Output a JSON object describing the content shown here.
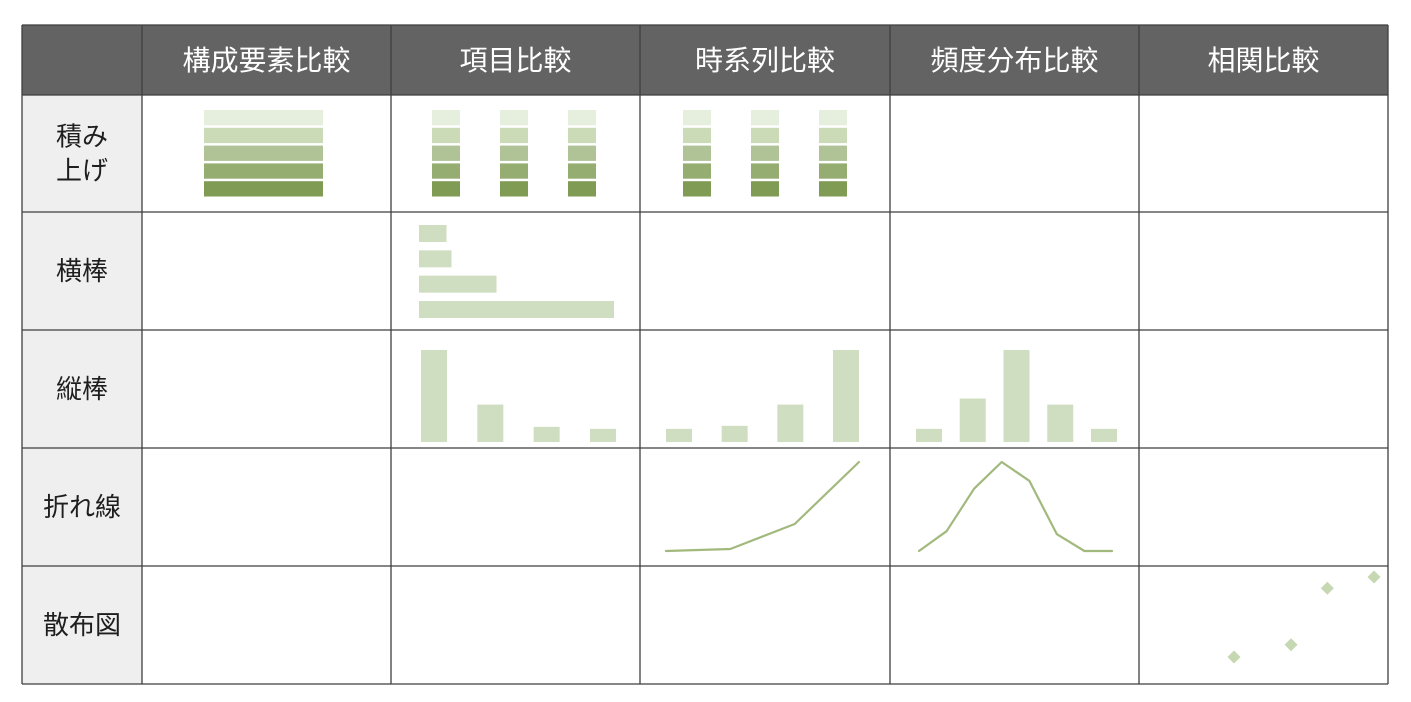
{
  "colors": {
    "header_bg": "#636363",
    "header_text": "#ffffff",
    "row_label_bg": "#efefef",
    "grid_line": "#3f3f3f",
    "bar_fill": "#cfdec0",
    "line_stroke": "#a2b97d",
    "marker_fill": "#c5d8b2",
    "stack_shades": [
      "#e6eedd",
      "#cbdbb8",
      "#afc397",
      "#96ad72",
      "#7f9b54"
    ]
  },
  "columns": [
    "構成要素比較",
    "項目比較",
    "時系列比較",
    "頻度分布比較",
    "相関比較"
  ],
  "rows": [
    {
      "key": "stacked",
      "label_lines": [
        "積み",
        "上げ"
      ]
    },
    {
      "key": "hbar",
      "label_lines": [
        "横棒"
      ]
    },
    {
      "key": "vbar",
      "label_lines": [
        "縦棒"
      ]
    },
    {
      "key": "line",
      "label_lines": [
        "折れ線"
      ]
    },
    {
      "key": "scatter",
      "label_lines": [
        "散布図"
      ]
    }
  ],
  "chart_data": [
    {
      "type": "bar",
      "name": "stacked-composition",
      "row": 0,
      "col": 0,
      "stacked": true,
      "stacks": [
        [
          1,
          1,
          1,
          1,
          1
        ]
      ]
    },
    {
      "type": "bar",
      "name": "stacked-item",
      "row": 0,
      "col": 1,
      "stacked": true,
      "stacks": [
        [
          1,
          1,
          1,
          1,
          1
        ],
        [
          1,
          1,
          1,
          1,
          1
        ],
        [
          1,
          1,
          1,
          1,
          1
        ]
      ]
    },
    {
      "type": "bar",
      "name": "stacked-timeseries",
      "row": 0,
      "col": 2,
      "stacked": true,
      "stacks": [
        [
          1,
          1,
          1,
          1,
          1
        ],
        [
          1,
          1,
          1,
          1,
          1
        ],
        [
          1,
          1,
          1,
          1,
          1
        ]
      ]
    },
    {
      "type": "bar",
      "name": "hbar-item",
      "row": 1,
      "col": 1,
      "orientation": "horizontal",
      "values": [
        1.1,
        1.3,
        3.1,
        7.8
      ]
    },
    {
      "type": "bar",
      "name": "vbar-item",
      "row": 2,
      "col": 1,
      "orientation": "vertical",
      "values": [
        9.1,
        3.7,
        1.5,
        1.3
      ]
    },
    {
      "type": "bar",
      "name": "vbar-timeseries",
      "row": 2,
      "col": 2,
      "orientation": "vertical",
      "values": [
        1.3,
        1.6,
        3.7,
        9.1
      ]
    },
    {
      "type": "bar",
      "name": "vbar-frequency",
      "row": 2,
      "col": 3,
      "orientation": "vertical",
      "values": [
        1.3,
        4.3,
        9.1,
        3.7,
        1.3
      ]
    },
    {
      "type": "line",
      "name": "line-timeseries",
      "row": 3,
      "col": 2,
      "x": [
        1,
        2,
        3,
        4
      ],
      "y": [
        0.3,
        0.5,
        3.0,
        9.2
      ]
    },
    {
      "type": "line",
      "name": "line-frequency",
      "row": 3,
      "col": 3,
      "x": [
        1,
        2,
        3,
        4,
        5,
        6,
        7,
        8
      ],
      "y": [
        0.3,
        2.3,
        6.6,
        9.3,
        7.4,
        2.0,
        0.3,
        0.3
      ]
    },
    {
      "type": "scatter",
      "name": "scatter-correlation",
      "row": 4,
      "col": 4,
      "x": [
        1.0,
        2.1,
        2.8,
        3.7
      ],
      "y": [
        2.6,
        3.8,
        9.3,
        10.4
      ]
    }
  ]
}
